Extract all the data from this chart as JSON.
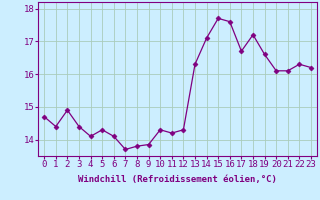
{
  "x": [
    0,
    1,
    2,
    3,
    4,
    5,
    6,
    7,
    8,
    9,
    10,
    11,
    12,
    13,
    14,
    15,
    16,
    17,
    18,
    19,
    20,
    21,
    22,
    23
  ],
  "y": [
    14.7,
    14.4,
    14.9,
    14.4,
    14.1,
    14.3,
    14.1,
    13.7,
    13.8,
    13.85,
    14.3,
    14.2,
    14.3,
    16.3,
    17.1,
    17.7,
    17.6,
    16.7,
    17.2,
    16.6,
    16.1,
    16.1,
    16.3,
    16.2
  ],
  "line_color": "#800080",
  "marker": "D",
  "marker_size": 2.5,
  "bg_color": "#cceeff",
  "grid_color": "#aaccbb",
  "xlabel": "Windchill (Refroidissement éolien,°C)",
  "ylim": [
    13.5,
    18.2
  ],
  "xlim": [
    -0.5,
    23.5
  ],
  "yticks": [
    14,
    15,
    16,
    17,
    18
  ],
  "xticks": [
    0,
    1,
    2,
    3,
    4,
    5,
    6,
    7,
    8,
    9,
    10,
    11,
    12,
    13,
    14,
    15,
    16,
    17,
    18,
    19,
    20,
    21,
    22,
    23
  ],
  "title_color": "#800080",
  "font_size_xlabel": 6.5,
  "font_size_ticks": 6.5
}
